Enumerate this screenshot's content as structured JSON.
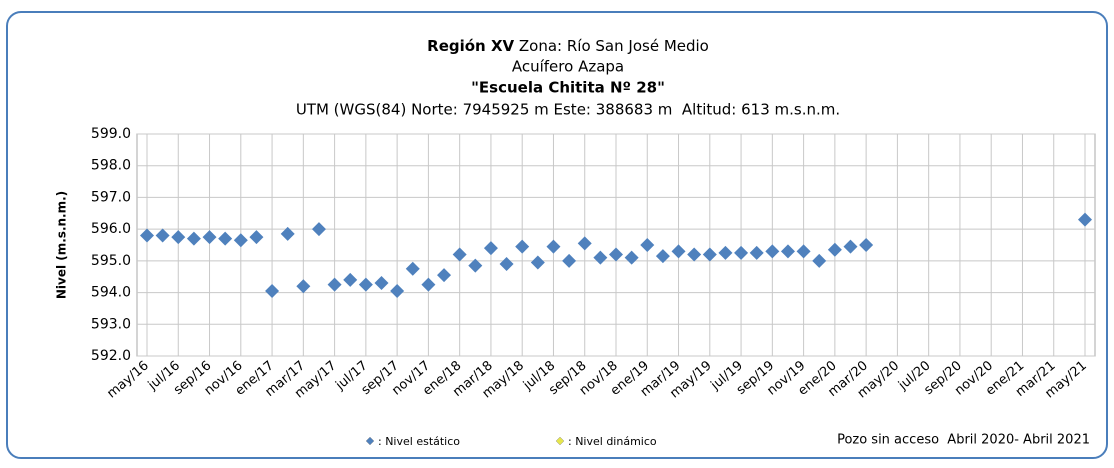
{
  "chart_data": {
    "type": "scatter",
    "title": "Región XV",
    "zone": "Zona: Río San José Medio",
    "aquifer": "Acuífero Azapa",
    "well": "\"Escuela Chitita Nº 28\"",
    "location": "UTM (WGS(84) Norte: 7945925 m Este: 388683 m  Altitud: 613 m.s.n.m.",
    "y_label": "Nivel (m.s.n.m.)",
    "annotation": "Pozo sin acceso  Abril 2020- Abril 2021",
    "categories": [
      "may/16",
      null,
      "jul/16",
      null,
      "sep/16",
      null,
      "nov/16",
      null,
      "ene/17",
      null,
      "mar/17",
      null,
      "may/17",
      null,
      "jul/17",
      null,
      "sep/17",
      null,
      "nov/17",
      null,
      "ene/18",
      null,
      "mar/18",
      null,
      "may/18",
      null,
      "jul/18",
      null,
      "sep/18",
      null,
      "nov/18",
      null,
      "ene/19",
      null,
      "mar/19",
      null,
      "may/19",
      null,
      "jul/19",
      null,
      "sep/19",
      null,
      "nov/19",
      null,
      "ene/20",
      null,
      "mar/20",
      null,
      "may/20",
      null,
      "jul/20",
      null,
      "sep/20",
      null,
      "nov/20",
      null,
      "ene/21",
      null,
      "mar/21",
      null,
      "may/21"
    ],
    "series": [
      {
        "name": ": Nivel estático",
        "color": "#4f81bd",
        "values": [
          595.8,
          595.8,
          595.75,
          595.7,
          595.75,
          595.7,
          595.65,
          595.75,
          594.05,
          595.85,
          594.2,
          596.0,
          594.25,
          594.4,
          594.25,
          594.3,
          594.05,
          594.75,
          594.25,
          594.55,
          595.2,
          594.85,
          595.4,
          594.9,
          595.45,
          594.95,
          595.45,
          595.0,
          595.55,
          595.1,
          595.2,
          595.1,
          595.5,
          595.15,
          595.3,
          595.2,
          595.2,
          595.25,
          595.25,
          595.25,
          595.3,
          595.3,
          595.3,
          595.0,
          595.35,
          595.45,
          595.5,
          null,
          null,
          null,
          null,
          null,
          null,
          null,
          null,
          null,
          null,
          null,
          null,
          null,
          596.3
        ]
      },
      {
        "name": ": Nivel dinámico",
        "color": "#e6e64c",
        "values": [
          null,
          null,
          null,
          null,
          null,
          null,
          null,
          null,
          null,
          null,
          null,
          null,
          null,
          null,
          null,
          null,
          null,
          null,
          null,
          null,
          null,
          null,
          null,
          null,
          null,
          null,
          null,
          null,
          null,
          null,
          null,
          null,
          null,
          null,
          null,
          null,
          null,
          null,
          null,
          null,
          null,
          null,
          null,
          null,
          null,
          null,
          null,
          null,
          null,
          null,
          null,
          null,
          null,
          null,
          null,
          null,
          null,
          null,
          null,
          null,
          null
        ]
      }
    ],
    "ylim": [
      592,
      599
    ],
    "yticks": [
      {
        "value": 592,
        "label": "592.0"
      },
      {
        "value": 593,
        "label": "593.0"
      },
      {
        "value": 594,
        "label": "594.0"
      },
      {
        "value": 595,
        "label": "595.0"
      },
      {
        "value": 596,
        "label": "596.0"
      },
      {
        "value": 597,
        "label": "597.0"
      },
      {
        "value": 598,
        "label": "598.0"
      },
      {
        "value": 599,
        "label": "599.0"
      }
    ],
    "grid": true
  }
}
